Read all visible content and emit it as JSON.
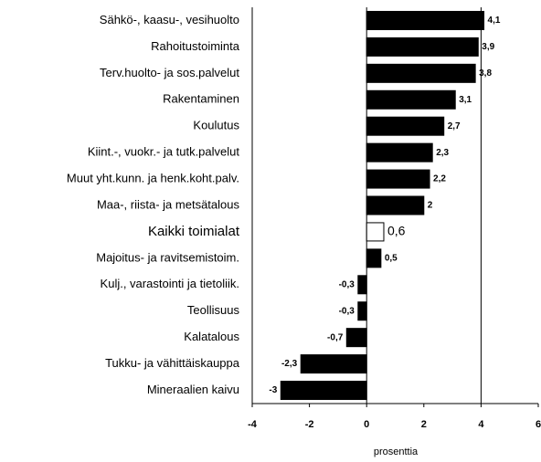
{
  "chart_data": {
    "type": "barh",
    "categories": [
      "Sähkö-, kaasu-, vesihuolto",
      "Rahoitustoiminta",
      "Terv.huolto- ja sos.palvelut",
      "Rakentaminen",
      "Koulutus",
      "Kiint.-, vuokr.- ja tutk.palvelut",
      "Muut yht.kunn. ja henk.koht.palv.",
      "Maa-, riista- ja metsätalous",
      "Kaikki toimialat",
      "Majoitus- ja ravitsemistoim.",
      "Kulj., varastointi ja tietoliik.",
      "Teollisuus",
      "Kalatalous",
      "Tukku- ja vähittäiskauppa",
      "Mineraalien kaivu"
    ],
    "values": [
      4.1,
      3.9,
      3.8,
      3.1,
      2.7,
      2.3,
      2.2,
      2,
      0.6,
      0.5,
      -0.3,
      -0.3,
      -0.7,
      -2.3,
      -3
    ],
    "value_labels": [
      "4,1",
      "3,9",
      "3,8",
      "3,1",
      "2,7",
      "2,3",
      "2,2",
      "2",
      "0,6",
      "0,5",
      "-0,3",
      "-0,3",
      "-0,7",
      "-2,3",
      "-3"
    ],
    "colors": [
      "#000000",
      "#000000",
      "#000000",
      "#000000",
      "#000000",
      "#000000",
      "#000000",
      "#000000",
      "#ffffff",
      "#000000",
      "#000000",
      "#000000",
      "#000000",
      "#000000",
      "#000000"
    ],
    "xlim": [
      -4,
      6
    ],
    "xticks": [
      -4,
      -2,
      0,
      2,
      4,
      6
    ],
    "xgrid": [
      0,
      4
    ],
    "x_label": "prosenttia"
  }
}
